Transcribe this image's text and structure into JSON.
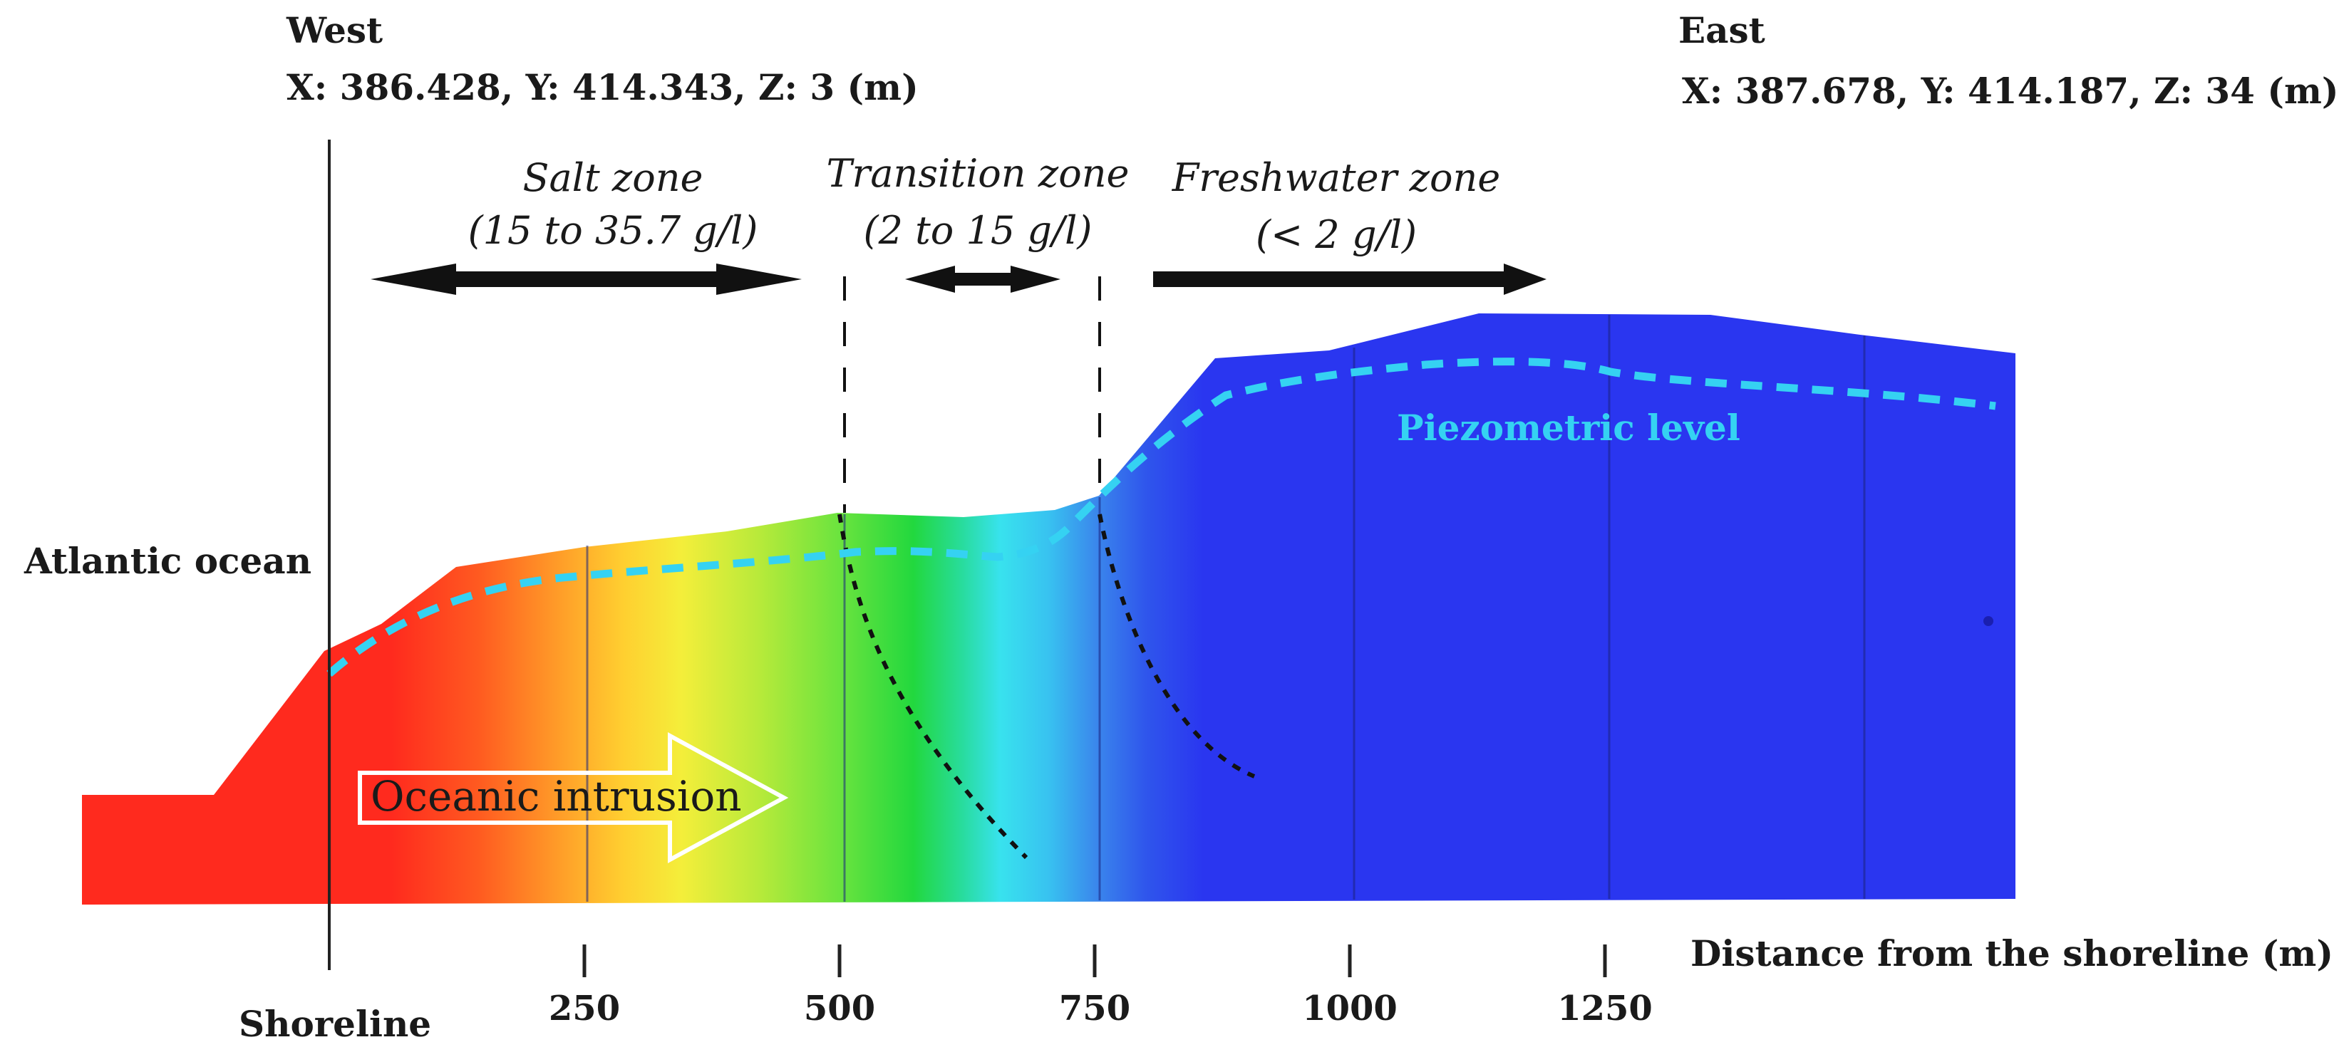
{
  "west": {
    "label": "West",
    "coords": "X: 386.428, Y: 414.343, Z: 3 (m)"
  },
  "east": {
    "label": "East",
    "coords": "X: 387.678, Y: 414.187, Z: 34 (m)"
  },
  "zones": {
    "salt": {
      "name": "Salt zone",
      "range": "(15 to 35.7 g/l)"
    },
    "transition": {
      "name": "Transition zone",
      "range": "(2 to 15 g/l)"
    },
    "freshwater": {
      "name": "Freshwater zone",
      "range": "(< 2 g/l)"
    }
  },
  "labels": {
    "ocean": "Atlantic ocean",
    "piezometric": "Piezometric level",
    "intrusion": "Oceanic intrusion",
    "shoreline": "Shoreline",
    "axis_title": "Distance from the shoreline (m)"
  },
  "axis": {
    "unit": "m",
    "range": [
      0,
      1250
    ],
    "ticks": [
      "250",
      "500",
      "750",
      "1000",
      "1250"
    ]
  },
  "colors": {
    "salt": "#ff2a1e",
    "freshwater": "#2a36f0",
    "piezometric": "#35d2f2",
    "text": "#1a1a1a"
  }
}
